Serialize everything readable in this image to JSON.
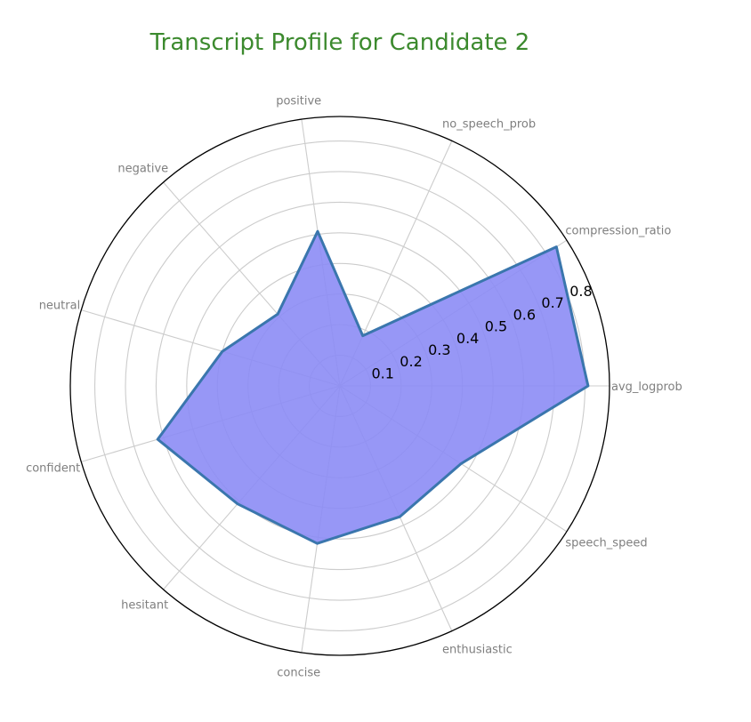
{
  "chart_data": {
    "type": "radar",
    "title": "Transcript Profile for Candidate 2",
    "axes": [
      "avg_logprob",
      "compression_ratio",
      "no_speech_prob",
      "positive",
      "negative",
      "neutral",
      "confident",
      "hesitant",
      "concise",
      "enthusiastic",
      "speech_speed"
    ],
    "values": [
      0.81,
      0.84,
      0.18,
      0.51,
      0.31,
      0.4,
      0.62,
      0.51,
      0.52,
      0.47,
      0.47
    ],
    "r_ticks": [
      0.1,
      0.2,
      0.3,
      0.4,
      0.5,
      0.6,
      0.7,
      0.8
    ],
    "r_tick_labels": [
      "0.1",
      "0.2",
      "0.3",
      "0.4",
      "0.5",
      "0.6",
      "0.7",
      "0.8"
    ],
    "rlim": [
      0,
      0.88
    ],
    "grid": true,
    "colors": {
      "fill": "#8c8cf5",
      "line": "#3a76ad",
      "title": "#3c8a2e",
      "grid": "#cccccc",
      "outer_ring": "#000000",
      "axis_label": "#7f7f7f"
    }
  }
}
